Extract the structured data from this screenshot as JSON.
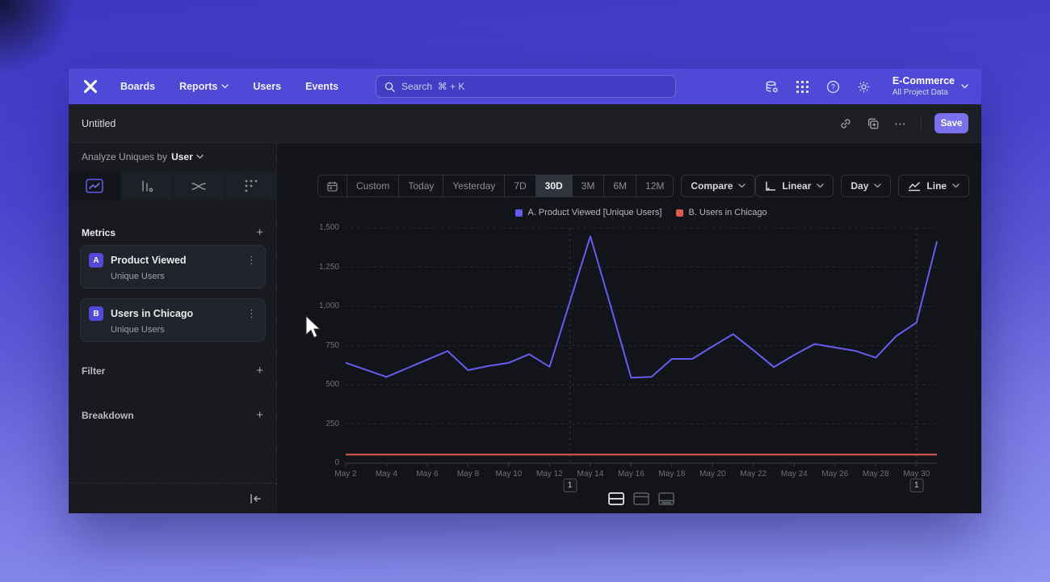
{
  "navbar": {
    "items": [
      {
        "label": "Boards",
        "has_menu": false
      },
      {
        "label": "Reports",
        "has_menu": true
      },
      {
        "label": "Users",
        "has_menu": false
      },
      {
        "label": "Events",
        "has_menu": false
      }
    ],
    "search_placeholder": "Search  ⌘ + K",
    "project_name": "E-Commerce",
    "project_scope": "All Project Data"
  },
  "toolbar": {
    "title": "Untitled",
    "save_label": "Save"
  },
  "sidebar": {
    "analyze_prefix": "Analyze Uniques by",
    "analyze_value": "User",
    "metrics_header": "Metrics",
    "metrics": [
      {
        "badge": "A",
        "title": "Product Viewed",
        "subtitle": "Unique Users"
      },
      {
        "badge": "B",
        "title": "Users in Chicago",
        "subtitle": "Unique Users"
      }
    ],
    "filter_label": "Filter",
    "breakdown_label": "Breakdown"
  },
  "controls": {
    "date_ranges": [
      "Custom",
      "Today",
      "Yesterday",
      "7D",
      "30D",
      "3M",
      "6M",
      "12M"
    ],
    "selected_range": "30D",
    "compare_label": "Compare",
    "scale_label": "Linear",
    "granularity_label": "Day",
    "chart_type_label": "Line"
  },
  "chart_data": {
    "type": "line",
    "x": [
      "May 2",
      "May 3",
      "May 4",
      "May 5",
      "May 6",
      "May 7",
      "May 8",
      "May 9",
      "May 10",
      "May 11",
      "May 12",
      "May 13",
      "May 14",
      "May 15",
      "May 16",
      "May 17",
      "May 18",
      "May 19",
      "May 20",
      "May 21",
      "May 22",
      "May 23",
      "May 24",
      "May 25",
      "May 26",
      "May 27",
      "May 28",
      "May 29",
      "May 30",
      "May 31"
    ],
    "x_tick_every": 2,
    "ylim": [
      0,
      1500
    ],
    "y_ticks": [
      0,
      250,
      500,
      750,
      1000,
      1250,
      1500
    ],
    "grid": "dashed-horizontal",
    "legend_position": "top-center",
    "series": [
      {
        "name": "A. Product Viewed [Unique Users]",
        "color": "#655CF0",
        "values": [
          640,
          595,
          550,
          605,
          660,
          715,
          593,
          620,
          640,
          695,
          615,
          1030,
          1447,
          1000,
          545,
          550,
          665,
          665,
          745,
          823,
          720,
          613,
          690,
          760,
          738,
          716,
          673,
          810,
          897,
          1415
        ]
      },
      {
        "name": "B. Users in Chicago",
        "color": "#DD5A4F",
        "values": [
          55,
          55,
          55,
          55,
          55,
          55,
          55,
          55,
          55,
          55,
          55,
          55,
          55,
          55,
          55,
          55,
          55,
          55,
          55,
          55,
          55,
          55,
          55,
          55,
          55,
          55,
          55,
          55,
          55,
          55
        ]
      }
    ],
    "annotations": [
      {
        "x": "May 13",
        "label": "1"
      },
      {
        "x": "May 30",
        "label": "1"
      }
    ]
  },
  "footer": {
    "view_toggles": [
      "table-and-chart",
      "chart-focus",
      "table-focus"
    ]
  }
}
